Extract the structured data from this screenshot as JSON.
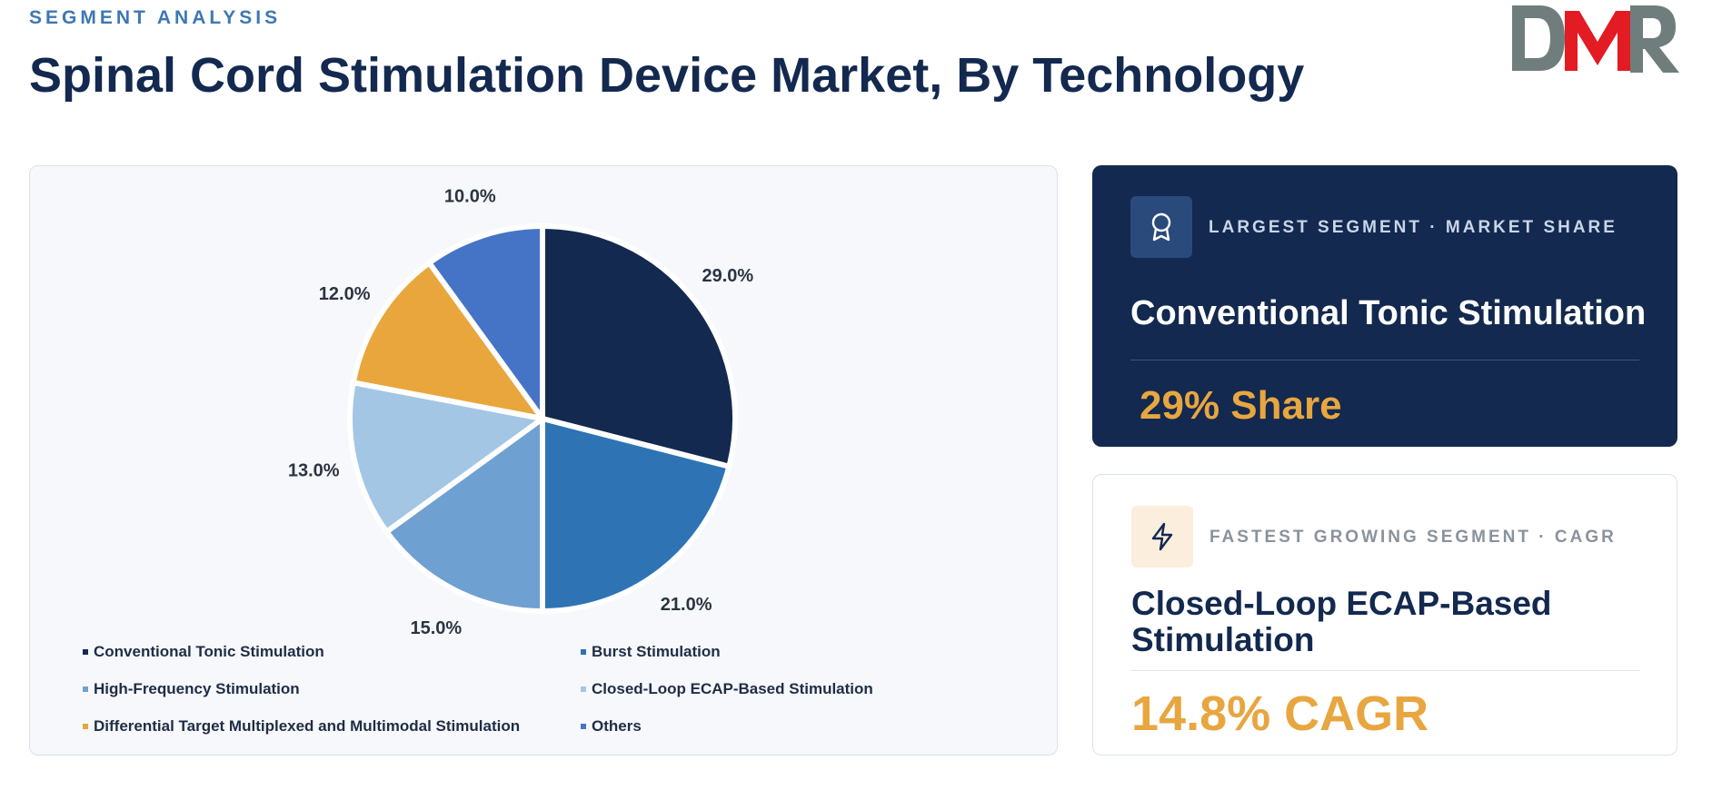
{
  "header": {
    "eyebrow": "SEGMENT ANALYSIS",
    "title": "Spinal Cord Stimulation Device Market, By Technology",
    "logo_text": "DMR"
  },
  "chart_data": {
    "type": "pie",
    "title": "",
    "slices": [
      {
        "name": "Conventional Tonic Stimulation",
        "value": 29.0,
        "label": "29.0%",
        "color": "#13294f"
      },
      {
        "name": "Burst Stimulation",
        "value": 21.0,
        "label": "21.0%",
        "color": "#2e74b5"
      },
      {
        "name": "High-Frequency Stimulation",
        "value": 15.0,
        "label": "15.0%",
        "color": "#6fa0d2"
      },
      {
        "name": "Closed-Loop ECAP-Based Stimulation",
        "value": 13.0,
        "label": "13.0%",
        "color": "#a3c6e5"
      },
      {
        "name": "Differential Target Multiplexed and Multimodal Stimulation",
        "value": 12.0,
        "label": "12.0%",
        "color": "#e8a63d"
      },
      {
        "name": "Others",
        "value": 10.0,
        "label": "10.0%",
        "color": "#4574c6"
      }
    ],
    "legend_position": "bottom"
  },
  "largest": {
    "eyebrow": "LARGEST SEGMENT  ·  MARKET SHARE",
    "segment": "Conventional Tonic Stimulation",
    "metric": "29% Share",
    "icon": "award-icon"
  },
  "fastest": {
    "eyebrow": "FASTEST GROWING SEGMENT  ·  CAGR",
    "segment": "Closed-Loop ECAP-Based Stimulation",
    "metric": "14.8% CAGR",
    "icon": "lightning-icon"
  },
  "colors": {
    "navy": "#13294f",
    "accent": "#e8a640",
    "logo_gray": "#6f7e7d",
    "logo_red": "#e31b23"
  }
}
